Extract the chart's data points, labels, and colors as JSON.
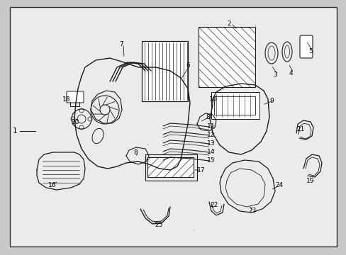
{
  "background_color": "#c8c8c8",
  "border_color": "#000000",
  "inner_bg": "#e8e8e8",
  "line_color": "#1a1a1a",
  "text_color": "#000000",
  "fig_width": 4.89,
  "fig_height": 3.6,
  "dpi": 100
}
